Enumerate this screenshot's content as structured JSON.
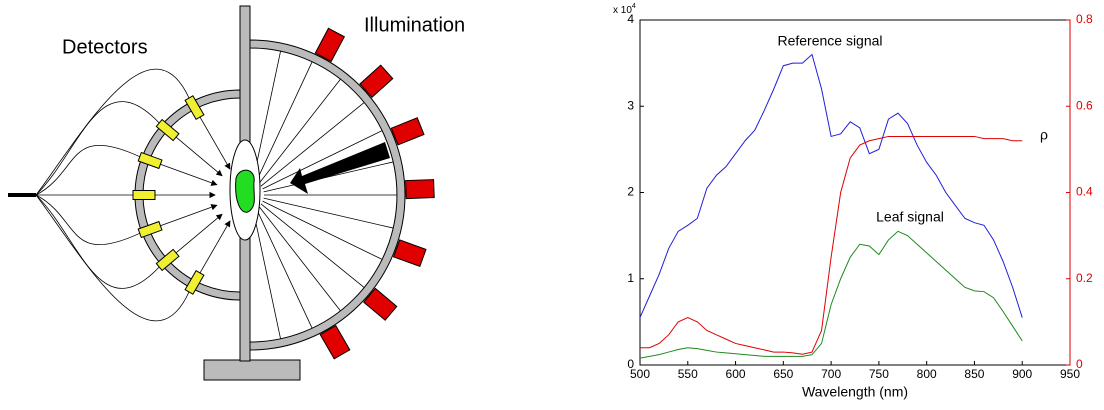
{
  "diagram": {
    "labels": [
      "Detectors",
      "Illumination"
    ]
  },
  "chart_data": {
    "type": "line",
    "xlabel": "Wavelength (nm)",
    "y_scale_label": {
      "base": "x 10",
      "exponent": "4"
    },
    "xlim": [
      500,
      950
    ],
    "xticks": [
      500,
      550,
      600,
      650,
      700,
      750,
      800,
      850,
      900,
      950
    ],
    "ylim": [
      0,
      4
    ],
    "yticks": [
      0,
      1,
      2,
      3,
      4
    ],
    "y2lim": [
      0,
      0.8
    ],
    "y2ticks": [
      0,
      0.2,
      0.4,
      0.6,
      0.8
    ],
    "y2_color": "#e00000",
    "x": [
      500,
      510,
      520,
      530,
      540,
      550,
      560,
      570,
      580,
      590,
      600,
      610,
      620,
      630,
      640,
      650,
      660,
      670,
      680,
      690,
      700,
      710,
      720,
      730,
      740,
      750,
      760,
      770,
      780,
      790,
      800,
      810,
      820,
      830,
      840,
      850,
      860,
      870,
      880,
      890,
      900
    ],
    "series": [
      {
        "name": "Reference signal",
        "color": "#1f1fd8",
        "values": [
          0.55,
          0.8,
          1.05,
          1.35,
          1.55,
          1.62,
          1.7,
          2.05,
          2.2,
          2.3,
          2.45,
          2.6,
          2.72,
          2.95,
          3.2,
          3.47,
          3.5,
          3.5,
          3.6,
          3.2,
          2.65,
          2.68,
          2.82,
          2.75,
          2.45,
          2.5,
          2.85,
          2.92,
          2.8,
          2.55,
          2.35,
          2.2,
          2.0,
          1.85,
          1.7,
          1.65,
          1.62,
          1.45,
          1.2,
          0.9,
          0.55
        ]
      },
      {
        "name": "Leaf signal",
        "color": "#1e8a1e",
        "values": [
          0.08,
          0.1,
          0.12,
          0.15,
          0.18,
          0.2,
          0.19,
          0.17,
          0.15,
          0.14,
          0.13,
          0.12,
          0.11,
          0.1,
          0.1,
          0.1,
          0.1,
          0.1,
          0.12,
          0.25,
          0.7,
          1.0,
          1.25,
          1.4,
          1.38,
          1.28,
          1.45,
          1.55,
          1.5,
          1.4,
          1.3,
          1.2,
          1.1,
          1.0,
          0.9,
          0.86,
          0.85,
          0.78,
          0.62,
          0.45,
          0.28
        ]
      },
      {
        "name": "ρ",
        "color": "#e00000",
        "axis": "y2",
        "values": [
          0.04,
          0.04,
          0.05,
          0.07,
          0.1,
          0.11,
          0.1,
          0.08,
          0.07,
          0.06,
          0.05,
          0.045,
          0.04,
          0.035,
          0.03,
          0.03,
          0.028,
          0.025,
          0.03,
          0.08,
          0.25,
          0.4,
          0.48,
          0.51,
          0.52,
          0.525,
          0.53,
          0.53,
          0.53,
          0.53,
          0.53,
          0.53,
          0.53,
          0.53,
          0.53,
          0.53,
          0.525,
          0.525,
          0.525,
          0.52,
          0.52
        ]
      }
    ]
  }
}
